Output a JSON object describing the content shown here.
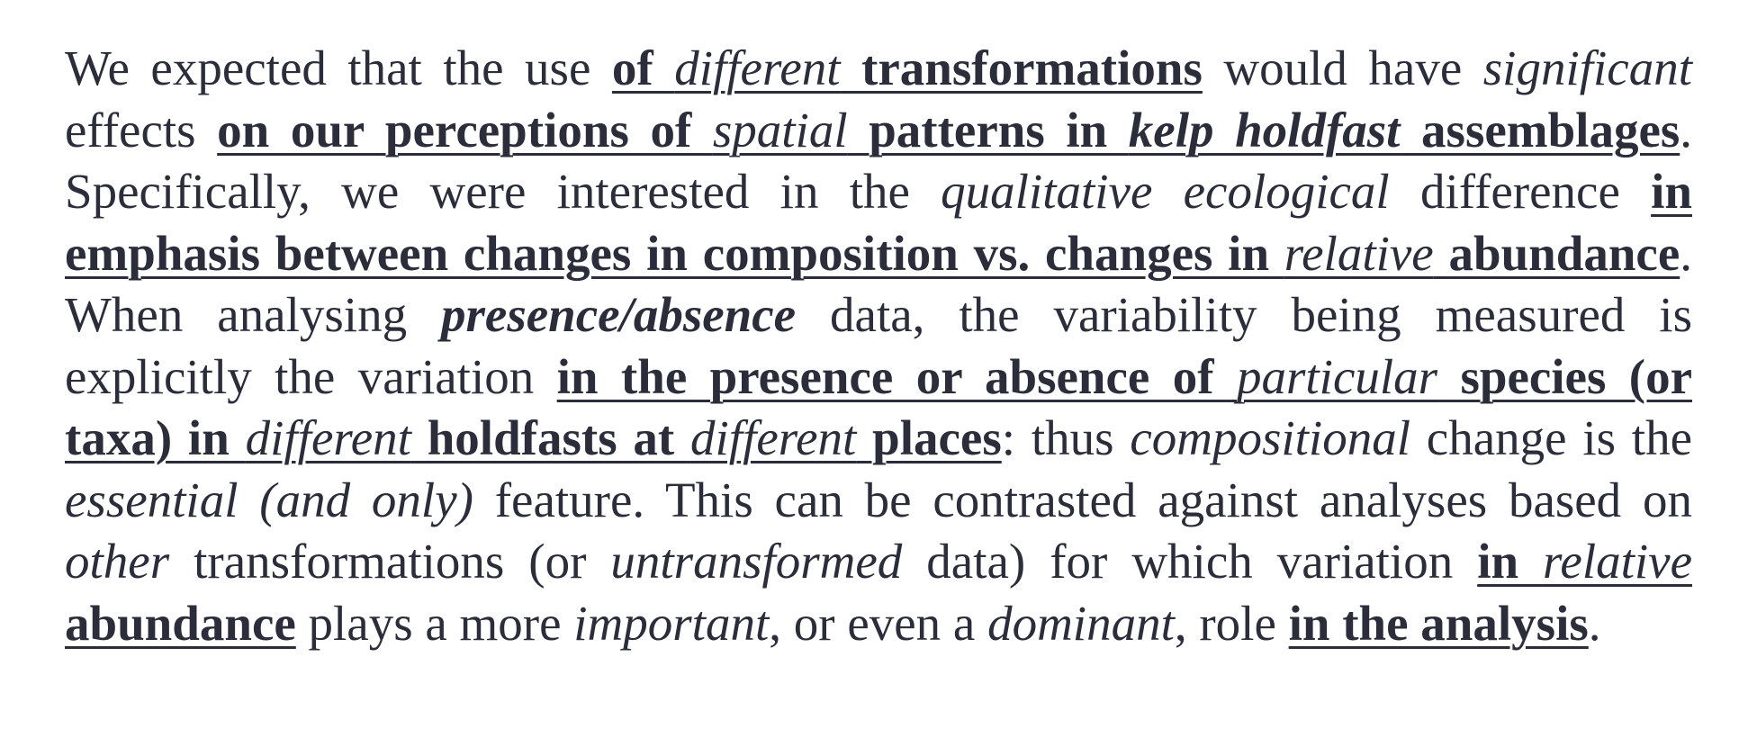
{
  "paragraph": {
    "segments": [
      {
        "t": "We expected that the use ",
        "s": ""
      },
      {
        "t": "of ",
        "s": "bu"
      },
      {
        "t": "different",
        "s": "iu"
      },
      {
        "t": " transformations",
        "s": "bu"
      },
      {
        "t": " would have ",
        "s": ""
      },
      {
        "t": "significant",
        "s": "i"
      },
      {
        "t": " effects ",
        "s": ""
      },
      {
        "t": "on our perceptions of ",
        "s": "bu"
      },
      {
        "t": "spatial",
        "s": "iu"
      },
      {
        "t": " patterns in ",
        "s": "bu"
      },
      {
        "t": "kelp holdfast",
        "s": "biu"
      },
      {
        "t": " assemblages",
        "s": "bu"
      },
      {
        "t": ". Specifically, we were interested in the ",
        "s": ""
      },
      {
        "t": "qualitative ecological",
        "s": "i"
      },
      {
        "t": " difference ",
        "s": ""
      },
      {
        "t": "in emphasis between changes in composition vs. changes in ",
        "s": "bu"
      },
      {
        "t": "relative",
        "s": "iu"
      },
      {
        "t": " abundance",
        "s": "bu"
      },
      {
        "t": ". When analysing ",
        "s": ""
      },
      {
        "t": "presence/absence",
        "s": "bi"
      },
      {
        "t": " data, the variability being measured is explicitly the variation ",
        "s": ""
      },
      {
        "t": "in the presence or absence of ",
        "s": "bu"
      },
      {
        "t": "particular",
        "s": "iu"
      },
      {
        "t": " species (or taxa) in ",
        "s": "bu"
      },
      {
        "t": "different",
        "s": "iu"
      },
      {
        "t": " holdfasts at ",
        "s": "bu"
      },
      {
        "t": "different",
        "s": "iu"
      },
      {
        "t": " places",
        "s": "bu"
      },
      {
        "t": ": thus ",
        "s": ""
      },
      {
        "t": "compositional",
        "s": "i"
      },
      {
        "t": " change is the ",
        "s": ""
      },
      {
        "t": "essential (and only)",
        "s": "i"
      },
      {
        "t": " feature. This can be contrasted against analyses based on ",
        "s": ""
      },
      {
        "t": "other",
        "s": "i"
      },
      {
        "t": " transformations (or ",
        "s": ""
      },
      {
        "t": "untrans­formed",
        "s": "i"
      },
      {
        "t": " data) for which variation ",
        "s": ""
      },
      {
        "t": "in ",
        "s": "bu"
      },
      {
        "t": "relative",
        "s": "iu"
      },
      {
        "t": " abundance",
        "s": "bu"
      },
      {
        "t": " plays a more ",
        "s": ""
      },
      {
        "t": "important",
        "s": "i"
      },
      {
        "t": ", or even a ",
        "s": ""
      },
      {
        "t": "dominant",
        "s": "i"
      },
      {
        "t": ", role ",
        "s": ""
      },
      {
        "t": "in the analysis",
        "s": "bu"
      },
      {
        "t": ".",
        "s": ""
      }
    ]
  }
}
